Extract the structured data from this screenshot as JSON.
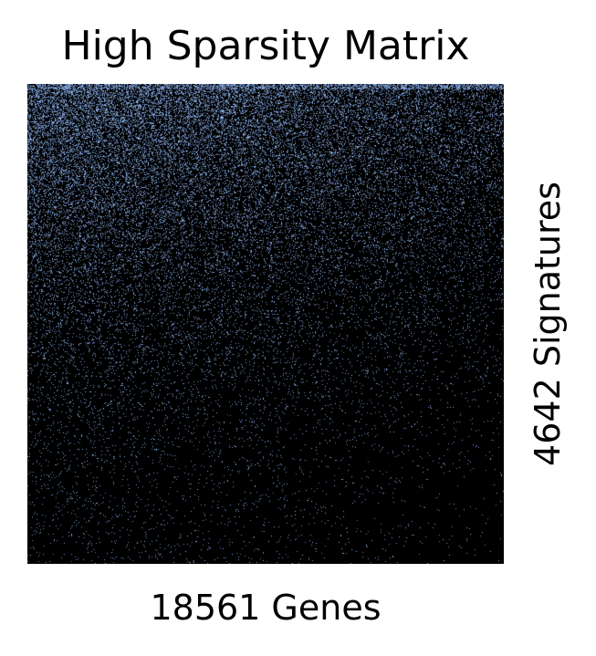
{
  "chart_data": {
    "type": "heatmap",
    "title": "High Sparsity Matrix",
    "xlabel": "18561 Genes",
    "ylabel": "4642 Signatures",
    "columns": 18561,
    "rows": 4642,
    "grid": false,
    "legend": "none",
    "colors": {
      "background": "#000000",
      "nonzero": "#8fb6f4"
    },
    "density_profile": {
      "description_axis": "fraction of nonzero entries, highest at top-left, decreasing toward bottom and right",
      "top_left": 0.45,
      "top_right": 0.2,
      "bottom_left": 0.03,
      "bottom_right": 0.005
    }
  }
}
